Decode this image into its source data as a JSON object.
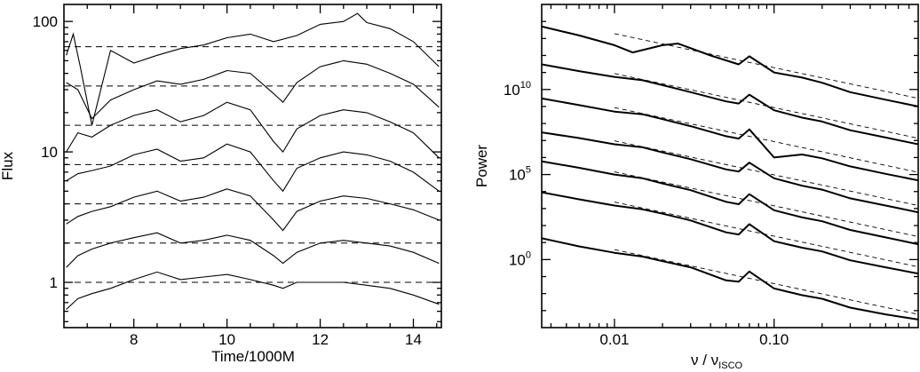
{
  "chart_data": [
    {
      "type": "line",
      "title": "",
      "xlabel": "Time/1000M",
      "ylabel": "Flux",
      "xlim": [
        6.5,
        14.6
      ],
      "ylim": [
        0.45,
        135
      ],
      "yscale": "log",
      "grid": false,
      "x_ticks": [
        8,
        10,
        12,
        14
      ],
      "x_tick_labels": [
        "8",
        "10",
        "12",
        "14"
      ],
      "y_ticks": [
        1,
        10,
        100
      ],
      "y_tick_labels": [
        "1",
        "10",
        "100"
      ],
      "reference_levels": [
        1.0,
        2.0,
        4.0,
        8.0,
        16.0,
        32.0,
        64.0
      ],
      "series": [
        {
          "x": [
            6.55,
            6.8,
            7.1,
            7.5,
            8.0,
            8.5,
            9.0,
            9.5,
            10.0,
            10.5,
            11.0,
            11.2,
            11.5,
            12.0,
            12.5,
            13.0,
            13.5,
            14.0,
            14.55
          ],
          "values": [
            0.62,
            0.75,
            0.82,
            0.9,
            1.05,
            1.2,
            1.05,
            1.1,
            1.15,
            1.05,
            0.95,
            0.9,
            1.0,
            1.0,
            1.0,
            0.95,
            0.9,
            0.8,
            0.68
          ]
        },
        {
          "x": [
            6.55,
            6.8,
            7.1,
            7.5,
            8.0,
            8.5,
            9.0,
            9.5,
            10.0,
            10.5,
            11.0,
            11.2,
            11.5,
            12.0,
            12.5,
            13.0,
            13.5,
            14.0,
            14.55
          ],
          "values": [
            1.3,
            1.6,
            1.8,
            2.0,
            2.2,
            2.4,
            2.0,
            2.1,
            2.3,
            2.1,
            1.6,
            1.4,
            1.7,
            2.0,
            2.1,
            2.0,
            1.9,
            1.7,
            1.4
          ]
        },
        {
          "x": [
            6.55,
            6.8,
            7.1,
            7.5,
            8.0,
            8.5,
            9.0,
            9.5,
            10.0,
            10.5,
            11.0,
            11.2,
            11.5,
            12.0,
            12.5,
            13.0,
            13.5,
            14.0,
            14.55
          ],
          "values": [
            2.8,
            3.2,
            3.5,
            3.8,
            4.5,
            5.0,
            4.2,
            4.5,
            5.2,
            4.6,
            3.0,
            2.5,
            3.5,
            4.2,
            4.6,
            4.4,
            4.0,
            3.6,
            3.0
          ]
        },
        {
          "x": [
            6.55,
            6.8,
            7.1,
            7.5,
            8.0,
            8.5,
            9.0,
            9.5,
            10.0,
            10.5,
            11.0,
            11.2,
            11.5,
            12.0,
            12.5,
            13.0,
            13.5,
            14.0,
            14.55
          ],
          "values": [
            6.0,
            6.8,
            7.2,
            7.8,
            9.5,
            10.5,
            8.5,
            9.0,
            11.5,
            10.0,
            6.0,
            5.0,
            7.5,
            9.0,
            10.0,
            9.5,
            8.5,
            7.0,
            5.0
          ]
        },
        {
          "x": [
            6.55,
            6.8,
            7.1,
            7.5,
            8.0,
            8.5,
            9.0,
            9.5,
            10.0,
            10.5,
            11.0,
            11.2,
            11.5,
            12.0,
            12.5,
            13.0,
            13.5,
            14.0,
            14.55
          ],
          "values": [
            10.0,
            14.0,
            13.0,
            16.0,
            19.0,
            21.0,
            17.0,
            19.0,
            24.0,
            21.0,
            12.0,
            10.0,
            15.0,
            19.0,
            21.0,
            20.0,
            17.0,
            14.0,
            9.0
          ]
        },
        {
          "x": [
            6.55,
            6.8,
            7.1,
            7.5,
            8.0,
            8.5,
            9.0,
            9.5,
            10.0,
            10.5,
            11.0,
            11.2,
            11.5,
            12.0,
            12.5,
            13.0,
            13.5,
            14.0,
            14.55
          ],
          "values": [
            34.0,
            30.0,
            18.0,
            25.0,
            30.0,
            35.0,
            33.0,
            36.0,
            42.0,
            40.0,
            28.0,
            24.0,
            34.0,
            45.0,
            50.0,
            47.0,
            40.0,
            33.0,
            22.0
          ]
        },
        {
          "x": [
            6.55,
            6.7,
            6.85,
            7.1,
            7.5,
            8.0,
            8.5,
            9.0,
            9.5,
            10.0,
            10.5,
            11.0,
            11.5,
            12.0,
            12.5,
            12.8,
            13.0,
            13.5,
            14.0,
            14.55
          ],
          "values": [
            55.0,
            80.0,
            45.0,
            16.0,
            60.0,
            48.0,
            55.0,
            62.0,
            66.0,
            75.0,
            80.0,
            70.0,
            78.0,
            95.0,
            100.0,
            115.0,
            98.0,
            88.0,
            70.0,
            45.0
          ]
        }
      ]
    },
    {
      "type": "line",
      "title": "",
      "xlabel": "ν / ν",
      "xlabel_subscript": "ISCO",
      "ylabel": "Power",
      "xlim": [
        0.0035,
        0.8
      ],
      "ylim": [
        0.0001,
        1000000000000000.0
      ],
      "xscale": "log",
      "yscale": "log",
      "grid": false,
      "x_ticks": [
        0.01,
        0.1
      ],
      "x_tick_labels": [
        "0.01",
        "0.10"
      ],
      "y_ticks": [
        1,
        100000,
        10000000000
      ],
      "y_tick_labels": [
        {
          "base": "10",
          "exp": "0"
        },
        {
          "base": "10",
          "exp": "5"
        },
        {
          "base": "10",
          "exp": "10"
        }
      ],
      "reference_slope": -2,
      "series": [
        {
          "x": [
            0.0035,
            0.006,
            0.01,
            0.015,
            0.02,
            0.03,
            0.05,
            0.06,
            0.07,
            0.1,
            0.15,
            0.2,
            0.3,
            0.5,
            0.8
          ],
          "values": [
            18.0,
            6.0,
            2.5,
            1.5,
            0.8,
            0.35,
            0.06,
            0.05,
            0.2,
            0.02,
            0.008,
            0.005,
            0.0015,
            0.0006,
            0.0003
          ]
        },
        {
          "x": [
            0.0035,
            0.006,
            0.01,
            0.015,
            0.02,
            0.03,
            0.05,
            0.06,
            0.07,
            0.1,
            0.15,
            0.2,
            0.3,
            0.5,
            0.8
          ],
          "values": [
            9000.0,
            3500.0,
            1500.0,
            900.0,
            500.0,
            200.0,
            40.0,
            30.0,
            120.0,
            12.0,
            5.0,
            3.0,
            0.9,
            0.35,
            0.15
          ]
        },
        {
          "x": [
            0.0035,
            0.006,
            0.01,
            0.015,
            0.02,
            0.03,
            0.05,
            0.06,
            0.07,
            0.1,
            0.15,
            0.2,
            0.3,
            0.5,
            0.8
          ],
          "values": [
            600000.0,
            250000.0,
            100000.0,
            60000.0,
            30000.0,
            12000.0,
            2500.0,
            1800.0,
            7000.0,
            800.0,
            300.0,
            180.0,
            55.0,
            20.0,
            8.0
          ]
        },
        {
          "x": [
            0.0035,
            0.006,
            0.01,
            0.015,
            0.02,
            0.03,
            0.05,
            0.06,
            0.07,
            0.1,
            0.15,
            0.2,
            0.3,
            0.5,
            0.8
          ],
          "values": [
            30000000.0,
            14000000.0,
            6000000.0,
            4000000.0,
            2000000.0,
            800000.0,
            200000.0,
            150000.0,
            500000.0,
            60000.0,
            22000.0,
            13000.0,
            4000.0,
            1500.0,
            600.0
          ]
        },
        {
          "x": [
            0.0035,
            0.006,
            0.01,
            0.015,
            0.02,
            0.03,
            0.05,
            0.06,
            0.07,
            0.1,
            0.15,
            0.2,
            0.3,
            0.5,
            0.8
          ],
          "values": [
            3000000000.0,
            1200000000.0,
            500000000.0,
            350000000.0,
            180000000.0,
            70000000.0,
            18000000.0,
            13000000.0,
            45000000.0,
            1000000.0,
            1500000.0,
            900000.0,
            300000.0,
            110000.0,
            45000.0
          ]
        },
        {
          "x": [
            0.0035,
            0.006,
            0.01,
            0.015,
            0.02,
            0.03,
            0.05,
            0.06,
            0.07,
            0.1,
            0.15,
            0.2,
            0.3,
            0.5,
            0.8
          ],
          "values": [
            300000000000.0,
            120000000000.0,
            55000000000.0,
            35000000000.0,
            18000000000.0,
            7000000000.0,
            2000000000.0,
            1500000000.0,
            5000000000.0,
            600000000.0,
            220000000.0,
            130000000.0,
            40000000.0,
            15000000.0,
            6000000.0
          ]
        },
        {
          "x": [
            0.0035,
            0.006,
            0.01,
            0.013,
            0.02,
            0.025,
            0.04,
            0.06,
            0.07,
            0.1,
            0.15,
            0.2,
            0.3,
            0.5,
            0.8
          ],
          "values": [
            50000000000000.0,
            15000000000000.0,
            4000000000000.0,
            1500000000000.0,
            4000000000000.0,
            5000000000000.0,
            1000000000000.0,
            300000000000.0,
            900000000000.0,
            100000000000.0,
            50000000000.0,
            25000000000.0,
            7000000000.0,
            2500000000.0,
            1000000000.0
          ]
        }
      ]
    }
  ]
}
